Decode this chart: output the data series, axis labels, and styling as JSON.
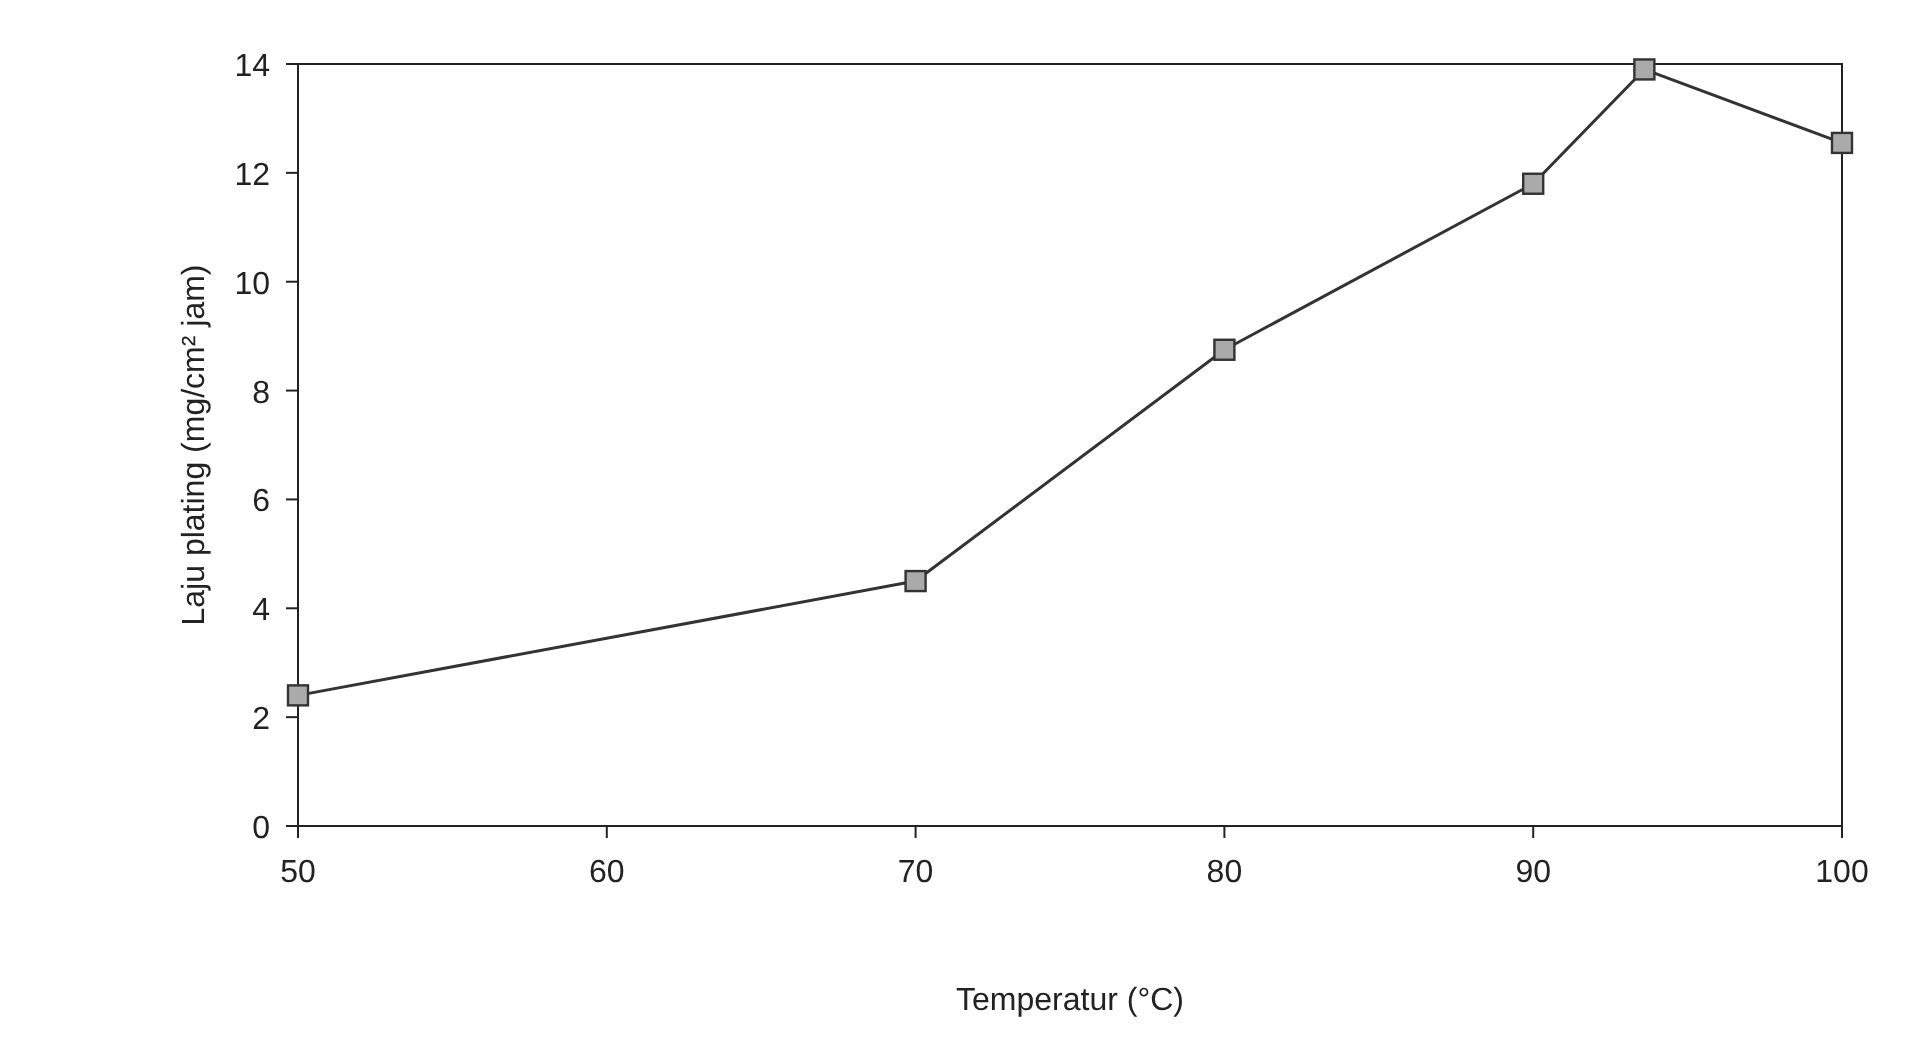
{
  "chart_data": {
    "type": "line",
    "xlabel": "Temperatur (°C)",
    "ylabel": "Laju plating (mg/cm² jam)",
    "x": [
      50,
      70,
      80,
      90,
      93.6,
      100
    ],
    "series": [
      {
        "color": "#333333",
        "values": [
          2.4,
          4.5,
          8.75,
          11.8,
          13.9,
          12.55
        ]
      }
    ],
    "xlim": [
      50,
      100
    ],
    "xticks": [
      50,
      60,
      70,
      80,
      90,
      100
    ],
    "ylim": [
      0,
      14
    ],
    "yticks": [
      0,
      2,
      4,
      6,
      8,
      10,
      12,
      14
    ],
    "marker": "square",
    "line_style": "solid",
    "grid": false
  }
}
